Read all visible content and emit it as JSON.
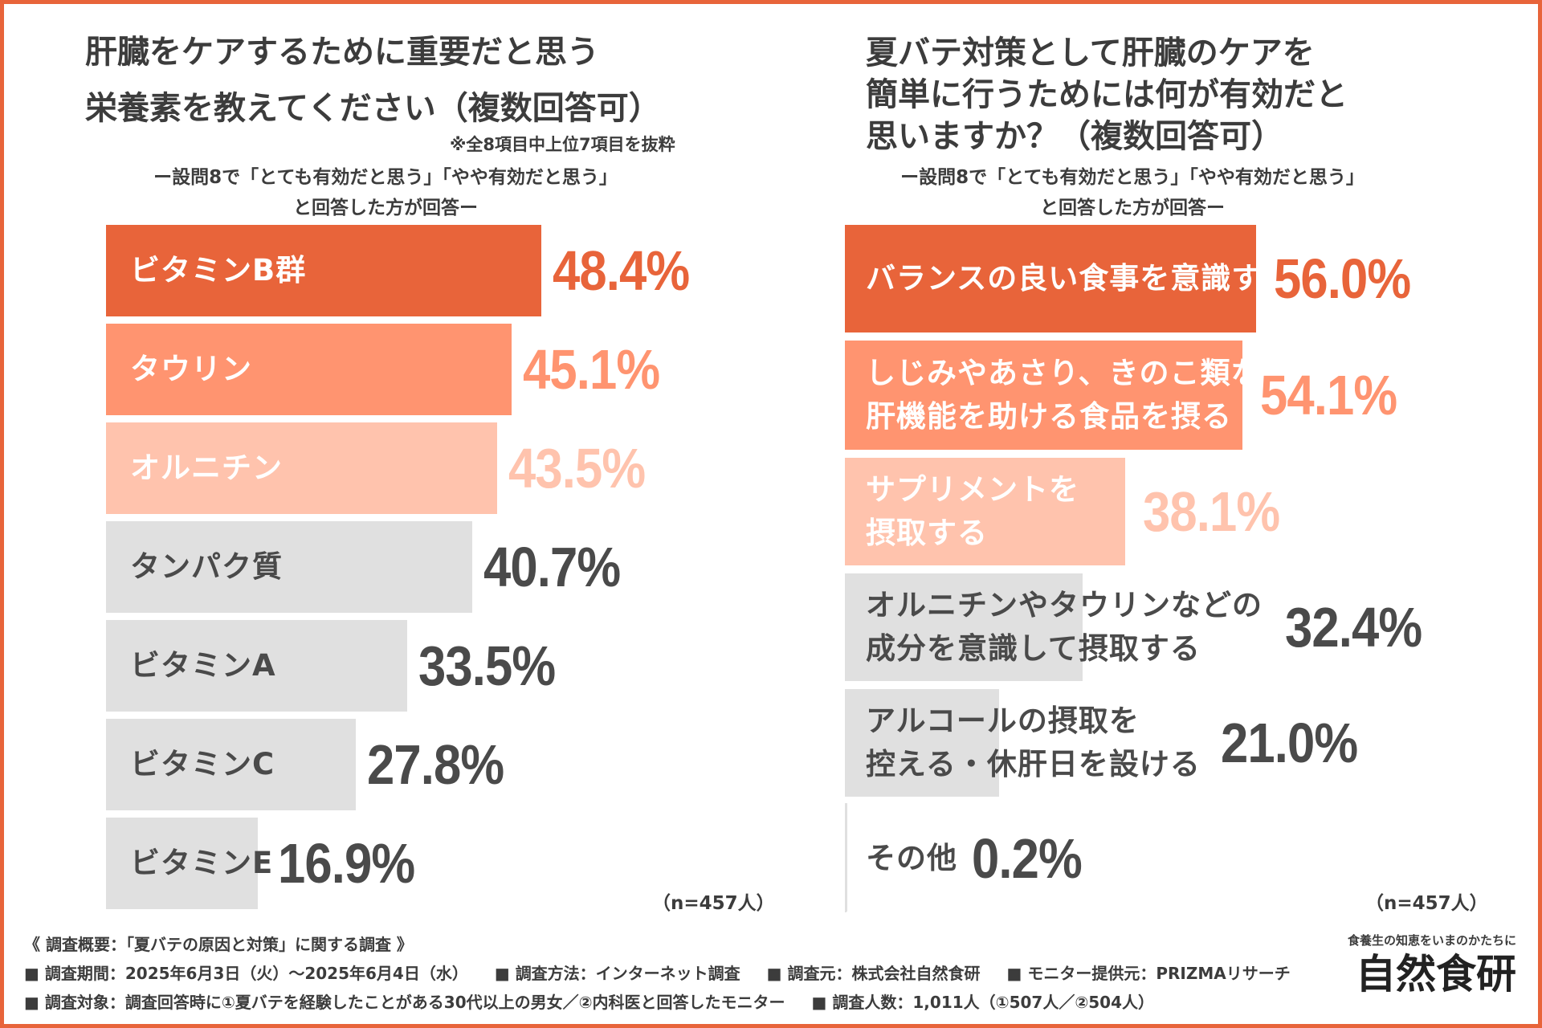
{
  "colors": {
    "frame": "#e8643a",
    "rank1": "#e8643a",
    "rank2": "#ff9470",
    "rank3": "#ffc3ad",
    "other": "#e0e0e0",
    "text_light": "#ffffff",
    "text_dark": "#4a4a4a",
    "value_dark": "#4a4a4a"
  },
  "left": {
    "title_lines": [
      "肝臓をケアするために重要だと思う",
      "栄養素を教えてください（複数回答可）"
    ],
    "note": "※全8項目中上位7項目を抜粋",
    "sub_lines": [
      "ー設問8で「とても有効だと思う」「やや有効だと思う」",
      "と回答した方が回答ー"
    ],
    "sample": "（n=457人）"
  },
  "right": {
    "title_lines": [
      "夏バテ対策として肝臓のケアを",
      "簡単に行うためには何が有効だと",
      "思いますか？（複数回答可）"
    ],
    "sub_lines": [
      "ー設問8で「とても有効だと思う」「やや有効だと思う」",
      "と回答した方が回答ー"
    ],
    "sample": "（n=457人）"
  },
  "chart_data": [
    {
      "type": "bar",
      "orientation": "horizontal",
      "title": "肝臓をケアするために重要だと思う栄養素を教えてください（複数回答可）",
      "unit": "%",
      "xlim": [
        0,
        100
      ],
      "categories": [
        "ビタミンB群",
        "タウリン",
        "オルニチン",
        "タンパク質",
        "ビタミンA",
        "ビタミンC",
        "ビタミンE"
      ],
      "category_lines": [
        [
          "ビタミンB群"
        ],
        [
          "タウリン"
        ],
        [
          "オルニチン"
        ],
        [
          "タンパク質"
        ],
        [
          "ビタミンA"
        ],
        [
          "ビタミンC"
        ],
        [
          "ビタミンE"
        ]
      ],
      "values": [
        48.4,
        45.1,
        43.5,
        40.7,
        33.5,
        27.8,
        16.9
      ],
      "value_labels": [
        "48.4%",
        "45.1%",
        "43.5%",
        "40.7%",
        "33.5%",
        "27.8%",
        "16.9%"
      ]
    },
    {
      "type": "bar",
      "orientation": "horizontal",
      "title": "夏バテ対策として肝臓のケアを簡単に行うためには何が有効だと思いますか？（複数回答可）",
      "unit": "%",
      "xlim": [
        0,
        100
      ],
      "categories": [
        "バランスの良い食事を意識する",
        "しじみやあさり、きのこ類など肝機能を助ける食品を摂る",
        "サプリメントを摂取する",
        "オルニチンやタウリンなどの成分を意識して摂取する",
        "アルコールの摂取を控える・休肝日を設ける",
        "その他"
      ],
      "category_lines": [
        [
          "バランスの良い食事を意識する"
        ],
        [
          "しじみやあさり、きのこ類など",
          "肝機能を助ける食品を摂る"
        ],
        [
          "サプリメントを",
          "摂取する"
        ],
        [
          "オルニチンやタウリンなどの",
          "成分を意識して摂取する"
        ],
        [
          "アルコールの摂取を",
          "控える・休肝日を設ける"
        ],
        [
          "その他"
        ]
      ],
      "values": [
        56.0,
        54.1,
        38.1,
        32.4,
        21.0,
        0.2
      ],
      "value_labels": [
        "56.0%",
        "54.1%",
        "38.1%",
        "32.4%",
        "21.0%",
        "0.2%"
      ]
    }
  ],
  "footer": {
    "heading": "《 調査概要：「夏バテの原因と対策」に関する調査 》",
    "row1": [
      "■ 調査期間：2025年6月3日（火）～2025年6月4日（水）",
      "■ 調査方法：インターネット調査",
      "■ 調査元：株式会社自然食研",
      "■ モニター提供元：PRIZMAリサーチ"
    ],
    "row2": [
      "■ 調査対象：調査回答時に①夏バテを経験したことがある30代以上の男女／②内科医と回答したモニター",
      "■ 調査人数：1,011人（①507人／②504人）"
    ]
  },
  "brand": {
    "tagline": "食養生の知恵をいまのかたちに",
    "name": "自然食研"
  }
}
